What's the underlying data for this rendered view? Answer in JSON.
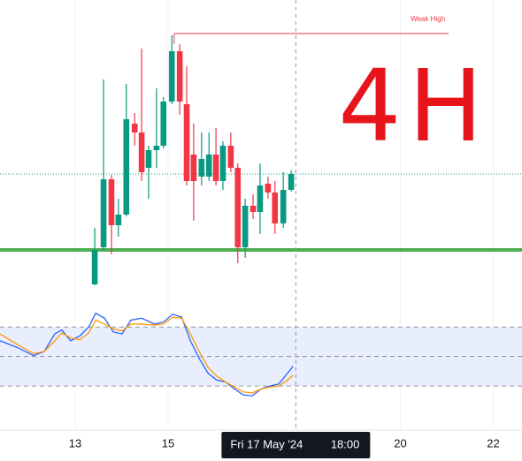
{
  "chart_data": [
    {
      "type": "candlestick",
      "x": [
        13.42,
        13.61,
        13.78,
        13.93,
        14.1,
        14.28,
        14.43,
        14.58,
        14.75,
        14.9,
        15.08,
        15.25,
        15.4,
        15.55,
        15.72,
        15.88,
        16.03,
        16.18,
        16.35,
        16.5,
        16.66,
        16.83,
        16.98,
        17.15,
        17.3,
        17.48,
        17.65
      ],
      "open": [
        28,
        70,
        147,
        95,
        107,
        210,
        200,
        160,
        180,
        185,
        235,
        292,
        232,
        175,
        150,
        150,
        175,
        145,
        185,
        160,
        70,
        117,
        110,
        142,
        132,
        97,
        135
      ],
      "high": [
        92,
        260,
        152,
        125,
        255,
        222,
        295,
        185,
        250,
        240,
        310,
        300,
        275,
        210,
        200,
        200,
        205,
        190,
        200,
        165,
        125,
        130,
        165,
        150,
        145,
        155,
        157
      ],
      "low": [
        27,
        67,
        62,
        82,
        105,
        185,
        145,
        125,
        160,
        182,
        232,
        220,
        140,
        100,
        140,
        145,
        140,
        135,
        155,
        52,
        58,
        102,
        85,
        125,
        85,
        92,
        133
      ],
      "close": [
        67,
        147,
        95,
        107,
        215,
        200,
        155,
        180,
        185,
        235,
        292,
        235,
        145,
        145,
        170,
        175,
        145,
        185,
        160,
        70,
        117,
        110,
        140,
        132,
        97,
        135,
        153
      ],
      "up_color": "#089981",
      "down_color": "#f23645",
      "xlim": [
        11.38,
        22.62
      ],
      "ylim": [
        0,
        350
      ],
      "xticks": [
        13,
        15,
        20,
        22
      ],
      "crosshair": {
        "x": 17.75,
        "date": "Fri 17 May '24",
        "time": "18:00"
      },
      "weak_high": {
        "text": "Weak High",
        "value": 312,
        "x_start": 15.13,
        "x_end": 21.04,
        "color": "#f23645"
      },
      "support": {
        "value": 67,
        "color": "#4caf50"
      },
      "price_line": {
        "value": 153,
        "color": "#089981"
      },
      "annotation": {
        "text": "4H",
        "color": "#e8141c"
      }
    },
    {
      "type": "line",
      "x": [
        11.38,
        11.76,
        12.1,
        12.33,
        12.56,
        12.71,
        12.9,
        13.1,
        13.29,
        13.44,
        13.63,
        13.82,
        14.01,
        14.2,
        14.43,
        14.71,
        14.9,
        15.1,
        15.29,
        15.48,
        15.67,
        15.86,
        16.05,
        16.24,
        16.43,
        16.62,
        16.81,
        17.0,
        17.19,
        17.38,
        17.57,
        17.69
      ],
      "series": [
        {
          "color": "#2962ff",
          "values": [
            66,
            59,
            51,
            55,
            73,
            77,
            66,
            71,
            80,
            94,
            89,
            75,
            73,
            87,
            89,
            83,
            85,
            93,
            90,
            66,
            48,
            33,
            26,
            24,
            17,
            11,
            10,
            17,
            20,
            22,
            33,
            40
          ]
        },
        {
          "color": "#ff9800",
          "values": [
            73,
            62,
            53,
            55,
            66,
            74,
            69,
            67,
            74,
            87,
            83,
            78,
            76,
            83,
            83,
            82,
            83,
            90,
            89,
            73,
            55,
            39,
            30,
            24,
            19,
            14,
            13,
            17,
            19,
            20,
            26,
            31
          ]
        }
      ],
      "ylim": [
        -23,
        100
      ],
      "levels": [
        80,
        50,
        20
      ],
      "band_color": "#e8eefd"
    }
  ]
}
